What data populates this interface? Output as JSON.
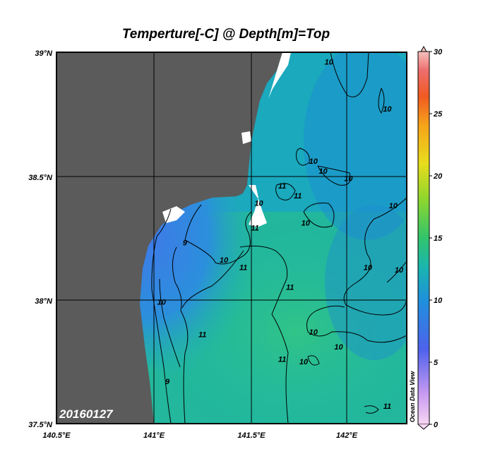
{
  "chart_data": {
    "type": "heatmap",
    "title": "Temperture[-C] @ Depth[m]=Top",
    "xlim": [
      140.5,
      142.3
    ],
    "ylim": [
      37.5,
      39.0
    ],
    "x_ticks": [
      {
        "value": 140.5,
        "label": "140.5°E"
      },
      {
        "value": 141.0,
        "label": "141°E"
      },
      {
        "value": 141.5,
        "label": "141.5°E"
      },
      {
        "value": 142.0,
        "label": "142°E"
      }
    ],
    "y_ticks": [
      {
        "value": 37.5,
        "label": "37.5°N"
      },
      {
        "value": 38.0,
        "label": "38°N"
      },
      {
        "value": 38.5,
        "label": "38.5°N"
      },
      {
        "value": 39.0,
        "label": "39°N"
      }
    ],
    "grid": true,
    "colorbar": {
      "range": [
        0,
        30
      ],
      "ticks": [
        "0",
        "5",
        "10",
        "15",
        "20",
        "25",
        "30"
      ],
      "position": "right"
    },
    "contour_labels": [
      {
        "text": "10",
        "lon": 141.9,
        "lat": 38.95
      },
      {
        "text": "10",
        "lon": 142.2,
        "lat": 38.76
      },
      {
        "text": "10",
        "lon": 141.82,
        "lat": 38.55
      },
      {
        "text": "10",
        "lon": 141.87,
        "lat": 38.51
      },
      {
        "text": "10",
        "lon": 142.0,
        "lat": 38.48
      },
      {
        "text": "11",
        "lon": 141.66,
        "lat": 38.45
      },
      {
        "text": "11",
        "lon": 141.74,
        "lat": 38.41
      },
      {
        "text": "10",
        "lon": 141.54,
        "lat": 38.38
      },
      {
        "text": "10",
        "lon": 141.78,
        "lat": 38.3
      },
      {
        "text": "10",
        "lon": 142.23,
        "lat": 38.37
      },
      {
        "text": "11",
        "lon": 141.52,
        "lat": 38.28
      },
      {
        "text": "9",
        "lon": 141.16,
        "lat": 38.22
      },
      {
        "text": "10",
        "lon": 141.36,
        "lat": 38.15
      },
      {
        "text": "11",
        "lon": 141.46,
        "lat": 38.12
      },
      {
        "text": "10",
        "lon": 142.1,
        "lat": 38.12
      },
      {
        "text": "10",
        "lon": 142.26,
        "lat": 38.11
      },
      {
        "text": "11",
        "lon": 141.7,
        "lat": 38.04
      },
      {
        "text": "10",
        "lon": 141.04,
        "lat": 37.98
      },
      {
        "text": "11",
        "lon": 141.25,
        "lat": 37.85
      },
      {
        "text": "10",
        "lon": 141.82,
        "lat": 37.86
      },
      {
        "text": "10",
        "lon": 141.95,
        "lat": 37.8
      },
      {
        "text": "11",
        "lon": 141.66,
        "lat": 37.75
      },
      {
        "text": "10",
        "lon": 141.77,
        "lat": 37.74
      },
      {
        "text": "9",
        "lon": 141.07,
        "lat": 37.66
      },
      {
        "text": "11",
        "lon": 142.2,
        "lat": 37.56
      }
    ],
    "date_label": "20160127",
    "watermark": "Ocean Data View",
    "colors": {
      "land": "#5b5b5b",
      "cold": "#3f7ae8",
      "cool": "#2d9fd4",
      "mid": "#1cb6a2",
      "warm": "#2fbf8c"
    }
  }
}
